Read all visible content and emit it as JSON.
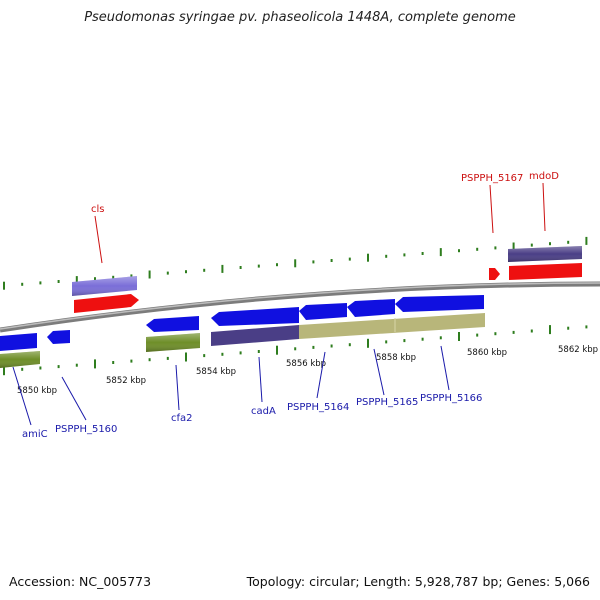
{
  "title": "Pseudomonas syringae pv. phaseolicola 1448A, complete genome",
  "footer": {
    "accession": "Accession: NC_005773",
    "summary": "Topology: circular; Length: 5,928,787 bp; Genes: 5,066"
  },
  "colors": {
    "backbone": "#8a8a8a",
    "tick": "#2e7d1e",
    "gene_blue": "#1010e0",
    "gene_red": "#ee1010",
    "gene_purple": "#7a6ed8",
    "gene_olive": "#6e8e28",
    "gene_darkpurple": "#4a3e86",
    "gene_khaki": "#b8b67a",
    "label_blue": "#1a1aaa",
    "label_red": "#cc1010"
  },
  "scale_labels": [
    "5850 kbp",
    "5852 kbp",
    "5854 kbp",
    "5856 kbp",
    "5858 kbp",
    "5860 kbp",
    "5862 kbp"
  ],
  "gene_labels": [
    {
      "name": "amiC",
      "group": "lower"
    },
    {
      "name": "PSPPH_5160",
      "group": "lower"
    },
    {
      "name": "cfa2",
      "group": "lower"
    },
    {
      "name": "cadA",
      "group": "lower"
    },
    {
      "name": "PSPPH_5164",
      "group": "lower"
    },
    {
      "name": "PSPPH_5165",
      "group": "lower"
    },
    {
      "name": "PSPPH_5166",
      "group": "lower"
    },
    {
      "name": "cls",
      "group": "upper"
    },
    {
      "name": "PSPPH_5167",
      "group": "upper"
    },
    {
      "name": "mdoD",
      "group": "upper"
    }
  ]
}
